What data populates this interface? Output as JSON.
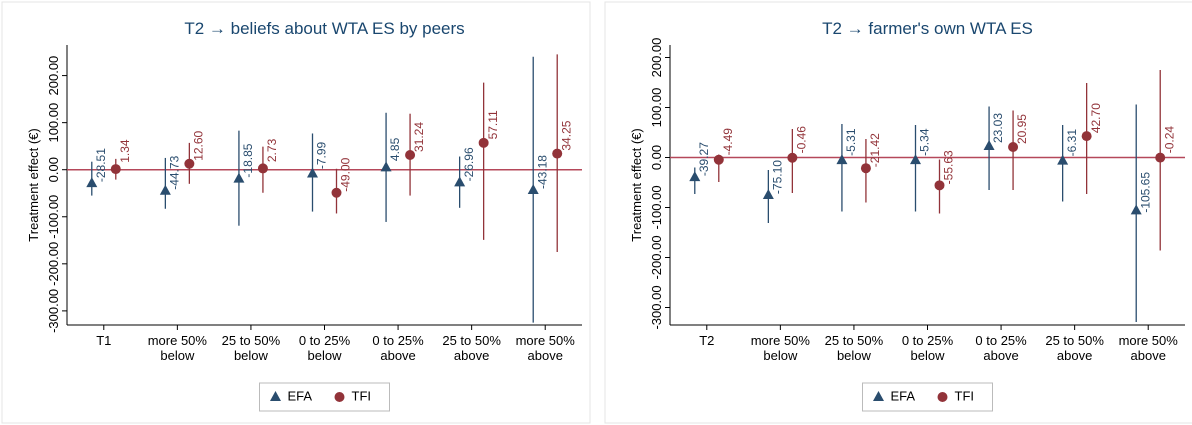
{
  "chart_data": [
    {
      "type": "errorbar",
      "title": "T2 → beliefs about WTA ES by  peers",
      "y_label": "Treatment effect (€)",
      "categories": [
        "T1",
        "more 50%\nbelow",
        "25 to 50%\nbelow",
        "0 to 25%\nbelow",
        "0 to 25%\nabove",
        "25 to 50%\nabove",
        "more 50%\nabove"
      ],
      "series": [
        {
          "name": "EFA",
          "color": "#2a4d6e",
          "marker": "triangle",
          "values": [
            -28.51,
            -44.73,
            -18.85,
            -7.99,
            4.85,
            -26.96,
            -43.18
          ],
          "value_labels": [
            "-28.51",
            "-44.73",
            "-18.85",
            "-7.99",
            "4.85",
            "-26.96",
            "-43.18"
          ],
          "lower": [
            -55,
            -83,
            -119,
            -89,
            -111,
            -81,
            -325
          ],
          "upper": [
            17,
            25,
            83,
            77,
            121,
            28,
            240
          ]
        },
        {
          "name": "TFI",
          "color": "#923339",
          "marker": "circle",
          "values": [
            1.34,
            12.6,
            2.73,
            -49.0,
            31.24,
            57.11,
            34.25
          ],
          "value_labels": [
            "1.34",
            "12.60",
            "2.73",
            "-49.00",
            "31.24",
            "57.11",
            "34.25"
          ],
          "lower": [
            -21,
            -30,
            -49,
            -93,
            -55,
            -149,
            -175
          ],
          "upper": [
            23,
            57,
            49,
            2,
            119,
            185,
            245
          ]
        }
      ],
      "ylim": [
        -330,
        265
      ],
      "yticks": [
        {
          "value": -300,
          "label": "-300.00"
        },
        {
          "value": -200,
          "label": "-200.00"
        },
        {
          "value": -100,
          "label": "-100.00"
        },
        {
          "value": 0,
          "label": "0.00"
        },
        {
          "value": 100,
          "label": "100.00"
        },
        {
          "value": 200,
          "label": "200.00"
        }
      ],
      "reference_line": {
        "value": 0,
        "color": "#b5485a"
      }
    },
    {
      "type": "errorbar",
      "title": "T2 → farmer's own WTA ES",
      "y_label": "Treatment effect (€)",
      "categories": [
        "T2",
        "more 50%\nbelow",
        "25 to 50%\nbelow",
        "0 to 25%\nbelow",
        "0 to 25%\nabove",
        "25 to 50%\nabove",
        "more 50%\nabove"
      ],
      "series": [
        {
          "name": "EFA",
          "color": "#2a4d6e",
          "marker": "triangle",
          "values": [
            -39.27,
            -75.1,
            -5.31,
            -5.34,
            23.03,
            -6.31,
            -105.65
          ],
          "value_labels": [
            "-39.27",
            "-75.10",
            "-5.31",
            "-5.34",
            "23.03",
            "-6.31",
            "-105.65"
          ],
          "lower": [
            -73,
            -131,
            -108,
            -108,
            -65,
            -88,
            -329
          ],
          "upper": [
            -20,
            -25,
            67,
            65,
            102,
            65,
            106
          ]
        },
        {
          "name": "TFI",
          "color": "#923339",
          "marker": "circle",
          "values": [
            -4.49,
            -0.46,
            -21.42,
            -55.63,
            20.95,
            42.7,
            -0.24
          ],
          "value_labels": [
            "-4.49",
            "-0.46",
            "-21.42",
            "-55.63",
            "20.95",
            "42.70",
            "-0.24"
          ],
          "lower": [
            -49,
            -71,
            -90,
            -112,
            -65,
            -73,
            -186
          ],
          "upper": [
            6,
            57,
            37,
            -4,
            94,
            149,
            175
          ]
        }
      ],
      "ylim": [
        -335,
        225
      ],
      "yticks": [
        {
          "value": -300,
          "label": "-300.00"
        },
        {
          "value": -200,
          "label": "-200.00"
        },
        {
          "value": -100,
          "label": "-100.00"
        },
        {
          "value": 0,
          "label": "0.00"
        },
        {
          "value": 100,
          "label": "100.00"
        },
        {
          "value": 200,
          "label": "200.00"
        }
      ],
      "reference_line": {
        "value": 0,
        "color": "#b5485a"
      }
    }
  ]
}
